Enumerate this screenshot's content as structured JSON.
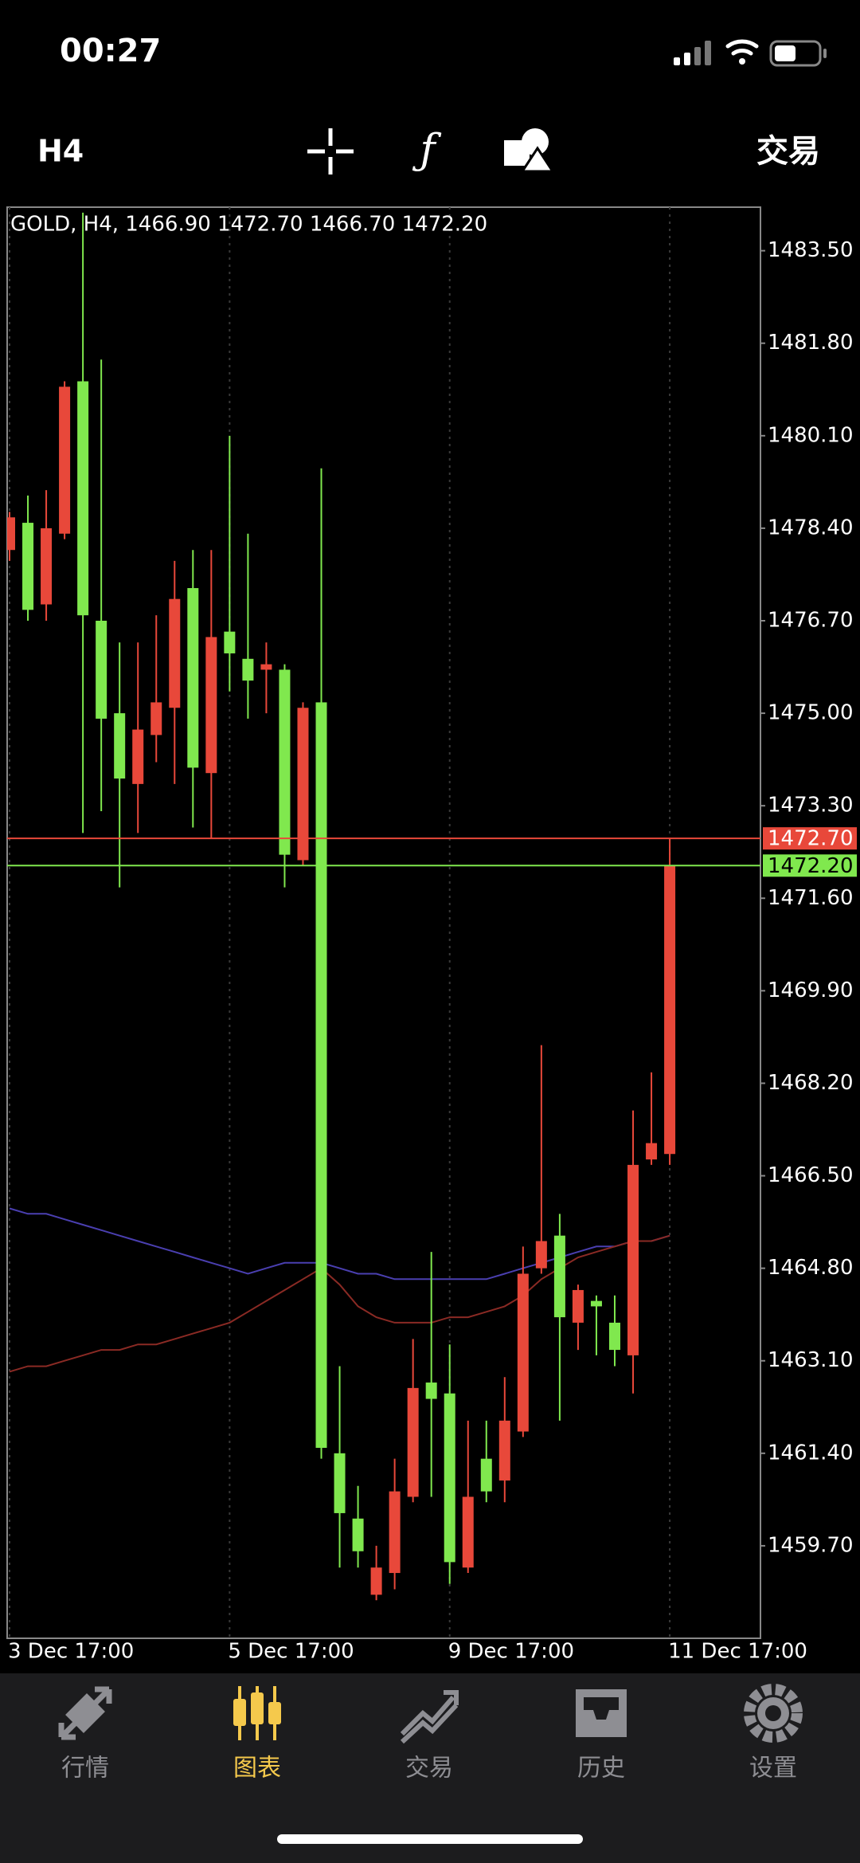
{
  "status_bar": {
    "time": "00:27"
  },
  "toolbar": {
    "timeframe": "H4",
    "trade": "交易"
  },
  "chart_data": {
    "type": "candlestick",
    "title": "GOLD, H4, 1466.90 1472.70 1466.70 1472.20",
    "categories": [
      "3 Dec 17:00",
      null,
      null,
      null,
      null,
      null,
      null,
      null,
      null,
      null,
      null,
      null,
      "5 Dec 17:00",
      null,
      null,
      null,
      null,
      null,
      null,
      null,
      null,
      null,
      null,
      null,
      "9 Dec 17:00",
      null,
      null,
      null,
      null,
      null,
      null,
      null,
      null,
      null,
      null,
      null,
      "11 Dec 17:00"
    ],
    "open": [
      1478.0,
      1478.5,
      1477.0,
      1478.3,
      1481.1,
      1476.7,
      1475.0,
      1473.7,
      1474.6,
      1475.1,
      1477.3,
      1473.9,
      1476.5,
      1476.0,
      1475.8,
      1475.8,
      1472.3,
      1475.2,
      1461.4,
      1460.2,
      1458.8,
      1459.2,
      1460.6,
      1462.7,
      1462.5,
      1459.3,
      1461.3,
      1460.9,
      1461.8,
      1464.8,
      1465.4,
      1463.8,
      1464.2,
      1463.8,
      1463.2,
      1466.8,
      1466.9
    ],
    "high": [
      1478.7,
      1479.0,
      1479.1,
      1481.1,
      1484.2,
      1481.5,
      1476.3,
      1476.3,
      1476.8,
      1477.8,
      1478.0,
      1478.0,
      1480.1,
      1478.3,
      1476.3,
      1475.9,
      1475.2,
      1479.5,
      1463.0,
      1460.8,
      1459.7,
      1461.3,
      1463.5,
      1465.1,
      1463.4,
      1462.0,
      1462.0,
      1462.8,
      1465.2,
      1468.9,
      1465.8,
      1464.5,
      1464.3,
      1464.3,
      1467.7,
      1468.4,
      1472.7
    ],
    "low": [
      1477.8,
      1476.7,
      1476.7,
      1478.2,
      1472.8,
      1473.2,
      1471.8,
      1472.8,
      1474.1,
      1473.7,
      1472.9,
      1472.7,
      1475.4,
      1474.9,
      1475.0,
      1471.8,
      1472.2,
      1461.3,
      1459.3,
      1459.3,
      1458.7,
      1458.9,
      1460.5,
      1460.6,
      1459.0,
      1459.2,
      1460.5,
      1460.5,
      1461.7,
      1464.7,
      1462.0,
      1463.3,
      1463.2,
      1463.0,
      1462.5,
      1466.7,
      1466.7
    ],
    "close": [
      1478.6,
      1476.9,
      1478.4,
      1481.0,
      1476.8,
      1474.9,
      1473.8,
      1474.7,
      1475.2,
      1477.1,
      1474.0,
      1476.4,
      1476.1,
      1475.6,
      1475.9,
      1472.4,
      1475.1,
      1461.5,
      1460.3,
      1459.6,
      1459.3,
      1460.7,
      1462.6,
      1462.4,
      1459.4,
      1460.6,
      1460.7,
      1462.0,
      1464.7,
      1465.3,
      1463.9,
      1464.4,
      1464.1,
      1463.3,
      1466.7,
      1467.1,
      1472.2
    ],
    "up_color": "#e8483a",
    "down_color": "#80e84e",
    "ylim": [
      1458.0,
      1484.3
    ],
    "yticks": [
      {
        "value": 1483.5,
        "label": "1483.50"
      },
      {
        "value": 1481.8,
        "label": "1481.80"
      },
      {
        "value": 1480.1,
        "label": "1480.10"
      },
      {
        "value": 1478.4,
        "label": "1478.40"
      },
      {
        "value": 1476.7,
        "label": "1476.70"
      },
      {
        "value": 1475.0,
        "label": "1475.00"
      },
      {
        "value": 1473.3,
        "label": "1473.30"
      },
      {
        "value": 1471.6,
        "label": "1471.60"
      },
      {
        "value": 1469.9,
        "label": "1469.90"
      },
      {
        "value": 1468.2,
        "label": "1468.20"
      },
      {
        "value": 1466.5,
        "label": "1466.50"
      },
      {
        "value": 1464.8,
        "label": "1464.80"
      },
      {
        "value": 1463.1,
        "label": "1463.10"
      },
      {
        "value": 1461.4,
        "label": "1461.40"
      },
      {
        "value": 1459.7,
        "label": "1459.70"
      }
    ],
    "grid": true,
    "price_lines": [
      {
        "value": 1472.7,
        "label": "1472.70",
        "color": "#e8483a"
      },
      {
        "value": 1472.2,
        "label": "1472.20",
        "color": "#80e84e"
      }
    ],
    "indicators": [
      {
        "color": "#4a3fb0",
        "values": [
          1465.9,
          1465.8,
          1465.8,
          1465.7,
          1465.6,
          1465.5,
          1465.4,
          1465.3,
          1465.2,
          1465.1,
          1465.0,
          1464.9,
          1464.8,
          1464.7,
          1464.8,
          1464.9,
          1464.9,
          1464.9,
          1464.8,
          1464.7,
          1464.7,
          1464.6,
          1464.6,
          1464.6,
          1464.6,
          1464.6,
          1464.6,
          1464.7,
          1464.8,
          1464.9,
          1465.0,
          1465.1,
          1465.2,
          1465.2,
          1465.3,
          1465.3,
          1465.4
        ]
      },
      {
        "color": "#8a2a24",
        "values": [
          1462.9,
          1463.0,
          1463.0,
          1463.1,
          1463.2,
          1463.3,
          1463.3,
          1463.4,
          1463.4,
          1463.5,
          1463.6,
          1463.7,
          1463.8,
          1464.0,
          1464.2,
          1464.4,
          1464.6,
          1464.8,
          1464.5,
          1464.1,
          1463.9,
          1463.8,
          1463.8,
          1463.8,
          1463.9,
          1463.9,
          1464.0,
          1464.1,
          1464.3,
          1464.6,
          1464.8,
          1465.0,
          1465.1,
          1465.2,
          1465.3,
          1465.3,
          1465.4
        ]
      }
    ]
  },
  "tabs": [
    {
      "label": "行情",
      "active": false
    },
    {
      "label": "图表",
      "active": true
    },
    {
      "label": "交易",
      "active": false
    },
    {
      "label": "历史",
      "active": false
    },
    {
      "label": "设置",
      "active": false
    }
  ]
}
